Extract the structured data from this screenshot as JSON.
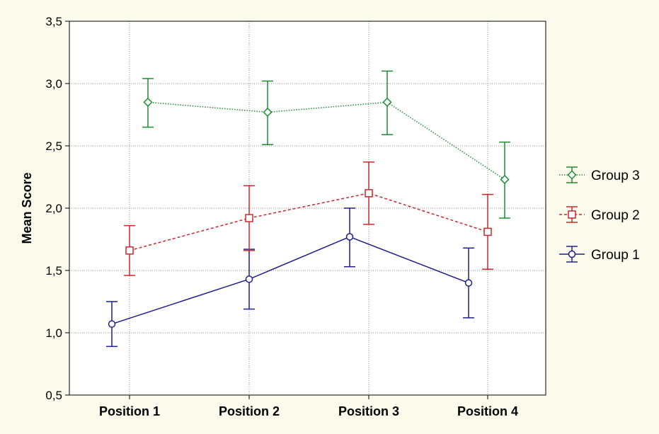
{
  "chart_data": {
    "type": "line",
    "xlabel": "",
    "ylabel": "Mean Score",
    "ylim": [
      0.5,
      3.5
    ],
    "yticks": [
      "0,5",
      "1,0",
      "1,5",
      "2,0",
      "2,5",
      "3,0",
      "3,5"
    ],
    "ytick_values": [
      0.5,
      1.0,
      1.5,
      2.0,
      2.5,
      3.0,
      3.5
    ],
    "categories": [
      "Position 1",
      "Position 2",
      "Position 3",
      "Position 4"
    ],
    "grid": true,
    "legend_position": "right",
    "series": [
      {
        "name": "Group 1",
        "color": "#1e1e8c",
        "line_style": "solid",
        "marker": "circle",
        "values": [
          1.07,
          1.43,
          1.77,
          1.4
        ],
        "err_low": [
          0.89,
          1.19,
          1.53,
          1.12
        ],
        "err_high": [
          1.25,
          1.67,
          2.0,
          1.68
        ]
      },
      {
        "name": "Group 2",
        "color": "#c8282d",
        "line_style": "dashed",
        "marker": "square",
        "values": [
          1.66,
          1.92,
          2.12,
          1.81
        ],
        "err_low": [
          1.46,
          1.66,
          1.87,
          1.51
        ],
        "err_high": [
          1.86,
          2.18,
          2.37,
          2.11
        ]
      },
      {
        "name": "Group 3",
        "color": "#1e8c32",
        "line_style": "dotted",
        "marker": "diamond",
        "values": [
          2.85,
          2.77,
          2.85,
          2.23
        ],
        "err_low": [
          2.65,
          2.51,
          2.59,
          1.92
        ],
        "err_high": [
          3.04,
          3.02,
          3.1,
          2.53
        ]
      }
    ]
  }
}
